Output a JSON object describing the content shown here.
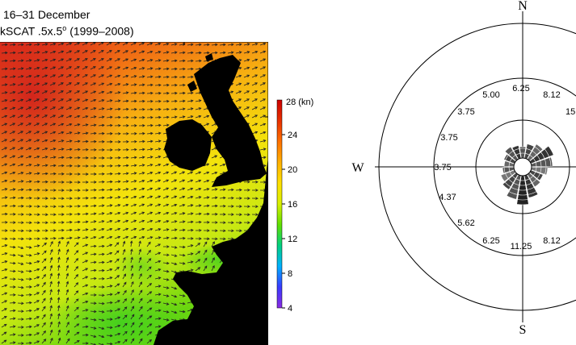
{
  "header": {
    "title_line1": "16–31 December",
    "title_line2_main": "kSCAT .5x.5",
    "title_line2_sup": "o",
    "title_line2_tail": " (1999–2008)"
  },
  "colorbar": {
    "unit_label": "28 (kn)",
    "ticks": [
      "24",
      "20",
      "16",
      "12",
      "8",
      "4"
    ],
    "tick_values": [
      24,
      20,
      16,
      12,
      8,
      4
    ],
    "range": [
      4,
      28
    ],
    "colors": [
      "#8a2be2",
      "#3a3aff",
      "#00b0ff",
      "#00d080",
      "#60e000",
      "#d8f000",
      "#ffe000",
      "#ffb000",
      "#ff7000",
      "#e83000",
      "#cc0000"
    ]
  },
  "map": {
    "land_color": "#000000",
    "arrow_color": "#222222",
    "field_colors": {
      "high": "#e23a1a",
      "mid": "#f7e00a",
      "low": "#5fd60f"
    }
  },
  "rose": {
    "compass": {
      "north": "N",
      "south": "S",
      "west": "W"
    },
    "ring_labels": [
      "6.25",
      "8.12",
      "15",
      "5.00",
      "3.75",
      "3.75",
      "3.75",
      "4.37",
      "5.62",
      "6.25",
      "11.25",
      "8.12"
    ],
    "petals": [
      {
        "dir": 0,
        "len": 14,
        "shade": "#555555"
      },
      {
        "dir": 20,
        "len": 18,
        "shade": "#444444"
      },
      {
        "dir": 40,
        "len": 22,
        "shade": "#666666"
      },
      {
        "dir": 60,
        "len": 30,
        "shade": "#333333"
      },
      {
        "dir": 80,
        "len": 26,
        "shade": "#555555"
      },
      {
        "dir": 100,
        "len": 20,
        "shade": "#777777"
      },
      {
        "dir": 120,
        "len": 16,
        "shade": "#444444"
      },
      {
        "dir": 140,
        "len": 18,
        "shade": "#666666"
      },
      {
        "dir": 160,
        "len": 28,
        "shade": "#333333"
      },
      {
        "dir": 180,
        "len": 36,
        "shade": "#222222"
      },
      {
        "dir": 200,
        "len": 30,
        "shade": "#555555"
      },
      {
        "dir": 220,
        "len": 22,
        "shade": "#444444"
      },
      {
        "dir": 240,
        "len": 18,
        "shade": "#777777"
      },
      {
        "dir": 260,
        "len": 14,
        "shade": "#555555"
      },
      {
        "dir": 280,
        "len": 12,
        "shade": "#666666"
      },
      {
        "dir": 300,
        "len": 14,
        "shade": "#444444"
      },
      {
        "dir": 320,
        "len": 18,
        "shade": "#555555"
      },
      {
        "dir": 340,
        "len": 16,
        "shade": "#333333"
      }
    ]
  }
}
